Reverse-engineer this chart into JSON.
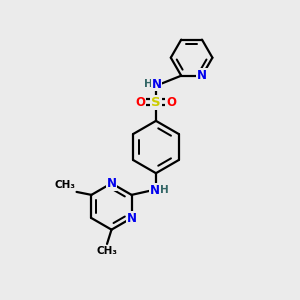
{
  "bg_color": "#ebebeb",
  "bond_color": "#000000",
  "bond_width": 1.6,
  "atom_colors": {
    "N": "#0000ee",
    "S": "#cccc00",
    "O": "#ff0000",
    "H": "#336666",
    "C": "#000000"
  },
  "font_size_atom": 8.5,
  "font_size_small": 7.5,
  "font_size_methyl": 7.5
}
